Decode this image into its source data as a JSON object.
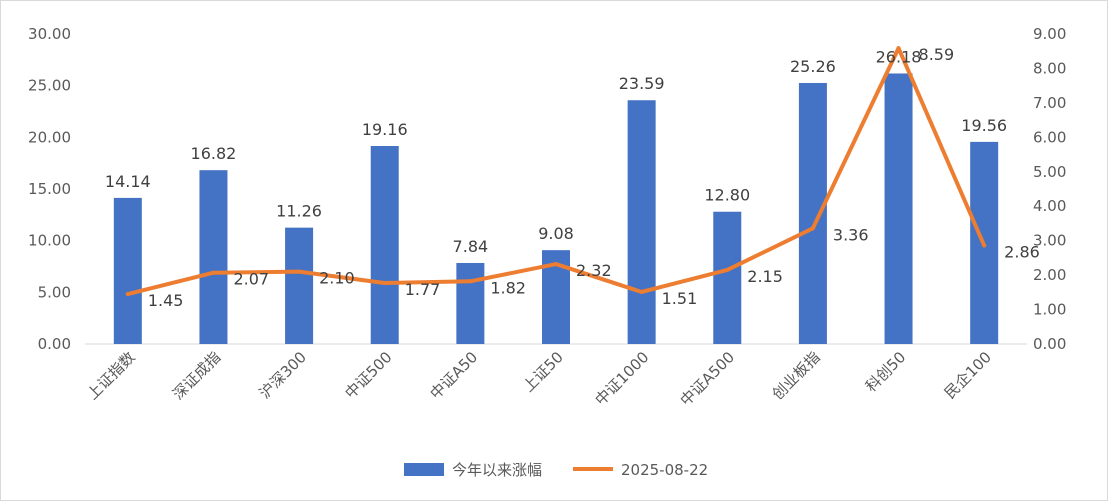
{
  "chart_data": {
    "type": "bar",
    "categories": [
      "上证指数",
      "深证成指",
      "沪深300",
      "中证500",
      "中证A50",
      "上证50",
      "中证1000",
      "中证A500",
      "创业板指",
      "科创50",
      "民企100"
    ],
    "series": [
      {
        "name": "今年以来涨幅",
        "kind": "bar",
        "axis": "left",
        "values": [
          14.14,
          16.82,
          11.26,
          19.16,
          7.84,
          9.08,
          23.59,
          12.8,
          25.26,
          26.18,
          19.56
        ],
        "labels": [
          "14.14",
          "16.82",
          "11.26",
          "19.16",
          "7.84",
          "9.08",
          "23.59",
          "12.80",
          "25.26",
          "26.18",
          "19.56"
        ]
      },
      {
        "name": "2025-08-22",
        "kind": "line",
        "axis": "right",
        "values": [
          1.45,
          2.07,
          2.1,
          1.77,
          1.82,
          2.32,
          1.51,
          2.15,
          3.36,
          8.59,
          2.86
        ],
        "labels": [
          "1.45",
          "2.07",
          "2.10",
          "1.77",
          "1.82",
          "2.32",
          "1.51",
          "2.15",
          "3.36",
          "8.59",
          "2.86"
        ]
      }
    ],
    "ylim_left": [
      0,
      30
    ],
    "ylim_right": [
      0,
      9
    ],
    "yticks_left": [
      "0.00",
      "5.00",
      "10.00",
      "15.00",
      "20.00",
      "25.00",
      "30.00"
    ],
    "yticks_right": [
      "0.00",
      "1.00",
      "2.00",
      "3.00",
      "4.00",
      "5.00",
      "6.00",
      "7.00",
      "8.00",
      "9.00"
    ],
    "grid": false,
    "legend": "bottom",
    "colors": {
      "bar": "#4472c4",
      "line": "#ed7d31"
    }
  }
}
